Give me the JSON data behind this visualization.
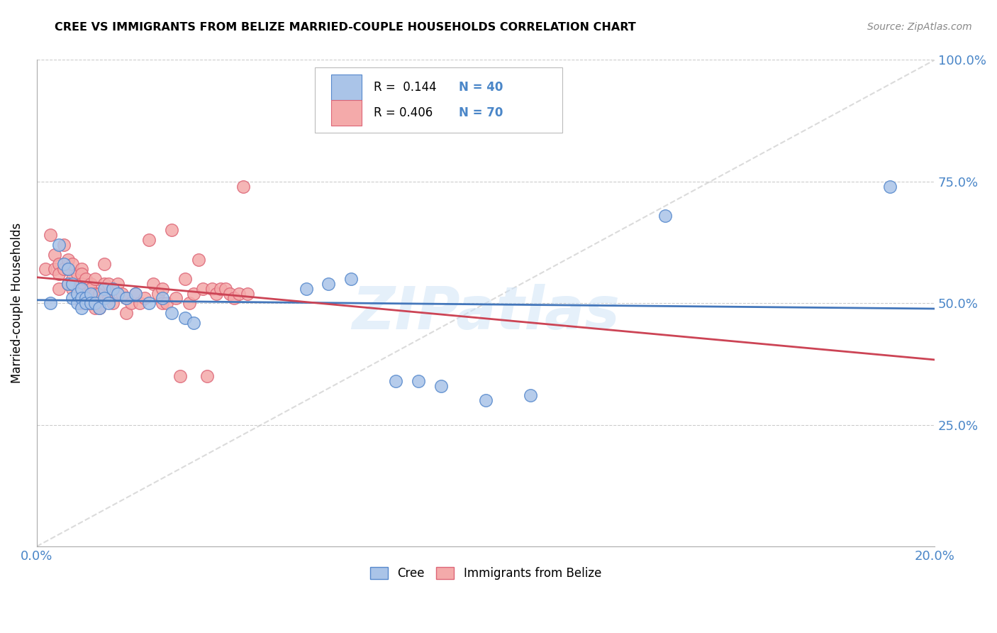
{
  "title": "CREE VS IMMIGRANTS FROM BELIZE MARRIED-COUPLE HOUSEHOLDS CORRELATION CHART",
  "source": "Source: ZipAtlas.com",
  "ylabel": "Married-couple Households",
  "xlabel": "",
  "xlim": [
    0.0,
    0.2
  ],
  "ylim": [
    0.0,
    1.0
  ],
  "ytick_vals": [
    0.0,
    0.25,
    0.5,
    0.75,
    1.0
  ],
  "ytick_labels": [
    "",
    "25.0%",
    "50.0%",
    "75.0%",
    "100.0%"
  ],
  "xtick_vals": [
    0.0,
    0.04,
    0.08,
    0.12,
    0.16,
    0.2
  ],
  "xtick_labels": [
    "0.0%",
    "",
    "",
    "",
    "",
    "20.0%"
  ],
  "legend_r_blue": "R =  0.144",
  "legend_n_blue": "N = 40",
  "legend_r_pink": "R = 0.406",
  "legend_n_pink": "N = 70",
  "blue_fill": "#aac4e8",
  "pink_fill": "#f4aaaa",
  "blue_edge": "#5588cc",
  "pink_edge": "#dd6677",
  "blue_line": "#4477bb",
  "pink_line": "#cc4455",
  "diag_color": "#cccccc",
  "watermark": "ZIPatlas",
  "background_color": "#ffffff",
  "grid_color": "#cccccc",
  "tick_label_color": "#4a86c8",
  "blue_scatter_x": [
    0.003,
    0.005,
    0.006,
    0.007,
    0.007,
    0.008,
    0.008,
    0.009,
    0.009,
    0.01,
    0.01,
    0.01,
    0.011,
    0.011,
    0.012,
    0.012,
    0.013,
    0.014,
    0.015,
    0.015,
    0.016,
    0.017,
    0.018,
    0.02,
    0.022,
    0.025,
    0.028,
    0.03,
    0.033,
    0.035,
    0.06,
    0.065,
    0.07,
    0.08,
    0.085,
    0.09,
    0.1,
    0.11,
    0.14,
    0.19
  ],
  "blue_scatter_y": [
    0.5,
    0.62,
    0.58,
    0.57,
    0.54,
    0.54,
    0.51,
    0.52,
    0.5,
    0.53,
    0.51,
    0.49,
    0.51,
    0.5,
    0.52,
    0.5,
    0.5,
    0.49,
    0.53,
    0.51,
    0.5,
    0.53,
    0.52,
    0.51,
    0.52,
    0.5,
    0.51,
    0.48,
    0.47,
    0.46,
    0.53,
    0.54,
    0.55,
    0.34,
    0.34,
    0.33,
    0.3,
    0.31,
    0.68,
    0.74
  ],
  "pink_scatter_x": [
    0.002,
    0.003,
    0.004,
    0.004,
    0.005,
    0.005,
    0.005,
    0.006,
    0.006,
    0.007,
    0.007,
    0.007,
    0.008,
    0.008,
    0.008,
    0.009,
    0.009,
    0.01,
    0.01,
    0.01,
    0.01,
    0.011,
    0.011,
    0.011,
    0.012,
    0.012,
    0.012,
    0.013,
    0.013,
    0.013,
    0.014,
    0.014,
    0.015,
    0.015,
    0.016,
    0.016,
    0.017,
    0.017,
    0.018,
    0.019,
    0.02,
    0.02,
    0.021,
    0.022,
    0.023,
    0.024,
    0.025,
    0.026,
    0.027,
    0.028,
    0.028,
    0.029,
    0.03,
    0.031,
    0.032,
    0.033,
    0.034,
    0.035,
    0.036,
    0.037,
    0.038,
    0.039,
    0.04,
    0.041,
    0.042,
    0.043,
    0.044,
    0.045,
    0.046,
    0.047
  ],
  "pink_scatter_y": [
    0.57,
    0.64,
    0.6,
    0.57,
    0.58,
    0.56,
    0.53,
    0.62,
    0.57,
    0.59,
    0.57,
    0.54,
    0.58,
    0.55,
    0.53,
    0.56,
    0.53,
    0.57,
    0.56,
    0.54,
    0.5,
    0.55,
    0.52,
    0.5,
    0.54,
    0.53,
    0.5,
    0.55,
    0.52,
    0.49,
    0.52,
    0.49,
    0.58,
    0.54,
    0.54,
    0.51,
    0.53,
    0.5,
    0.54,
    0.52,
    0.51,
    0.48,
    0.5,
    0.52,
    0.5,
    0.51,
    0.63,
    0.54,
    0.52,
    0.53,
    0.5,
    0.5,
    0.65,
    0.51,
    0.35,
    0.55,
    0.5,
    0.52,
    0.59,
    0.53,
    0.35,
    0.53,
    0.52,
    0.53,
    0.53,
    0.52,
    0.51,
    0.52,
    0.74,
    0.52
  ]
}
